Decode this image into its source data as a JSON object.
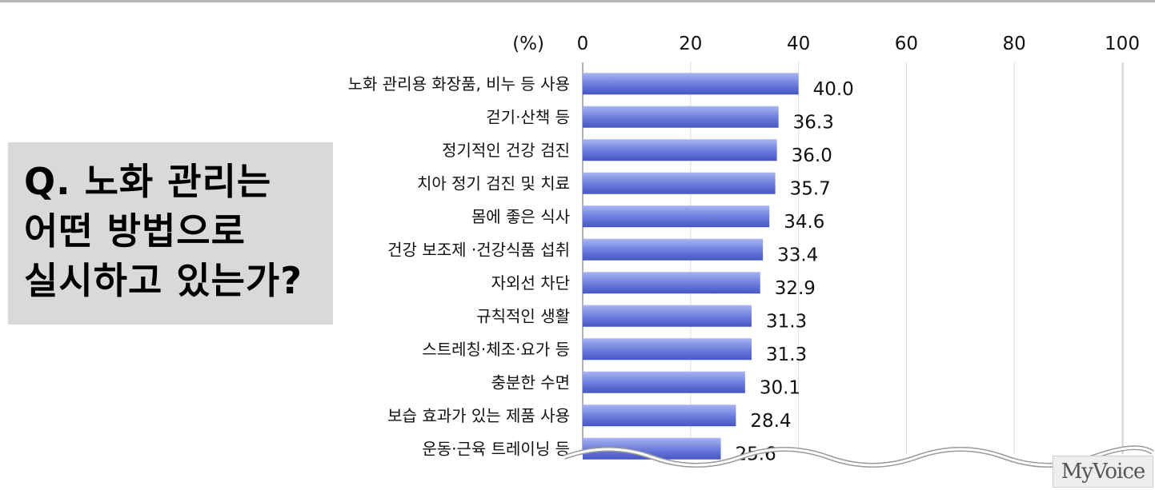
{
  "question": {
    "lines": [
      "Q. 노화 관리는",
      "어떤 방법으로",
      "실시하고 있는가?"
    ]
  },
  "watermark": "MyVoice",
  "colors": {
    "bar_start": "#5b6fd6",
    "bar_end": "#a9b5f2",
    "grid": "#dcdcdc",
    "question_bg": "#d9d9d9"
  },
  "chart_data": {
    "type": "bar",
    "orientation": "horizontal",
    "unit_label": "(%)",
    "xlim": [
      0,
      100
    ],
    "ticks": [
      0,
      20,
      40,
      60,
      80,
      100
    ],
    "grid": true,
    "categories": [
      "노화 관리용 화장품, 비누 등 사용",
      "걷기·산책 등",
      "정기적인 건강 검진",
      "치아 정기 검진 및 치료",
      "몸에 좋은 식사",
      "건강 보조제 ·건강식품 섭취",
      "자외선 차단",
      "규칙적인 생활",
      "스트레칭·체조·요가 등",
      "충분한 수면",
      "보습 효과가 있는 제품 사용",
      "운동·근육 트레이닝 등"
    ],
    "values": [
      40.0,
      36.3,
      36.0,
      35.7,
      34.6,
      33.4,
      32.9,
      31.3,
      31.3,
      30.1,
      28.4,
      25.6
    ],
    "value_labels": [
      "40.0",
      "36.3",
      "36.0",
      "35.7",
      "34.6",
      "33.4",
      "32.9",
      "31.3",
      "31.3",
      "30.1",
      "28.4",
      "25.6"
    ]
  }
}
